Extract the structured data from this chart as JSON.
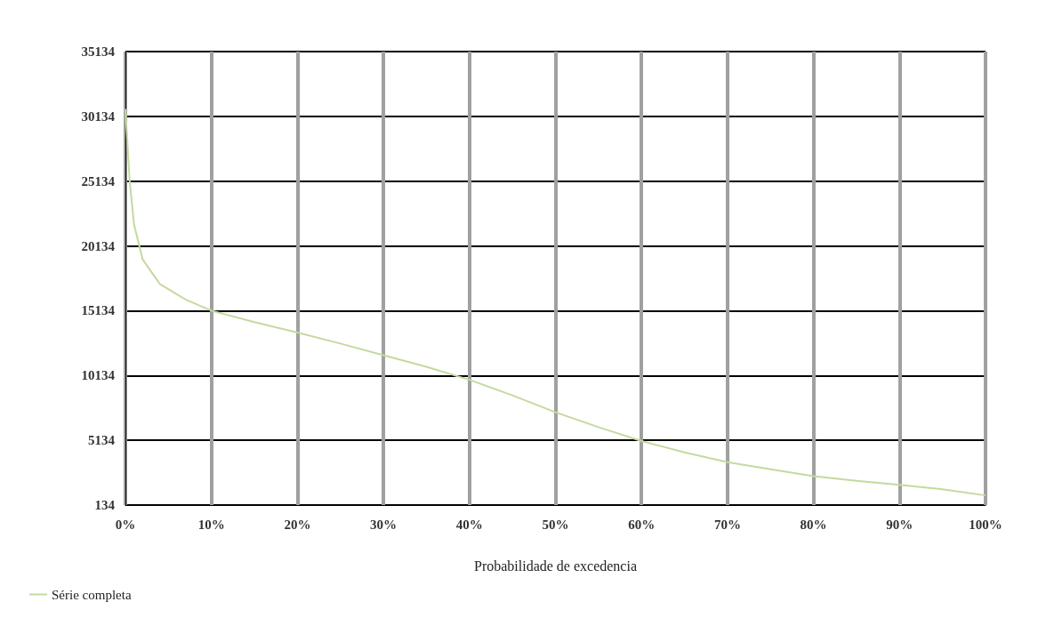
{
  "chart_data": {
    "type": "line",
    "xlabel": "Probabilidade de excedencia",
    "x": [
      0,
      0.5,
      1,
      2,
      4,
      7,
      10,
      15,
      20,
      25,
      30,
      35,
      40,
      45,
      50,
      55,
      60,
      65,
      70,
      75,
      80,
      85,
      90,
      95,
      100
    ],
    "series": [
      {
        "name": "Série completa",
        "color": "#c5d9a0",
        "values": [
          30700,
          25100,
          21800,
          19100,
          17200,
          16000,
          15134,
          14250,
          13450,
          12600,
          11700,
          10800,
          9800,
          8600,
          7300,
          6150,
          5070,
          4200,
          3450,
          2900,
          2360,
          2000,
          1690,
          1350,
          880
        ]
      }
    ],
    "xlim": [
      0,
      100
    ],
    "xticks": [
      {
        "value": 0,
        "label": "0%"
      },
      {
        "value": 10,
        "label": "10%"
      },
      {
        "value": 20,
        "label": "20%"
      },
      {
        "value": 30,
        "label": "30%"
      },
      {
        "value": 40,
        "label": "40%"
      },
      {
        "value": 50,
        "label": "50%"
      },
      {
        "value": 60,
        "label": "60%"
      },
      {
        "value": 70,
        "label": "70%"
      },
      {
        "value": 80,
        "label": "80%"
      },
      {
        "value": 90,
        "label": "90%"
      },
      {
        "value": 100,
        "label": "100%"
      }
    ],
    "ylim": [
      134,
      35134
    ],
    "yticks": [
      134,
      5134,
      10134,
      15134,
      20134,
      25134,
      30134,
      35134
    ],
    "grid": true,
    "legend": "bottom left",
    "marker": "none",
    "line_style": "solid"
  }
}
